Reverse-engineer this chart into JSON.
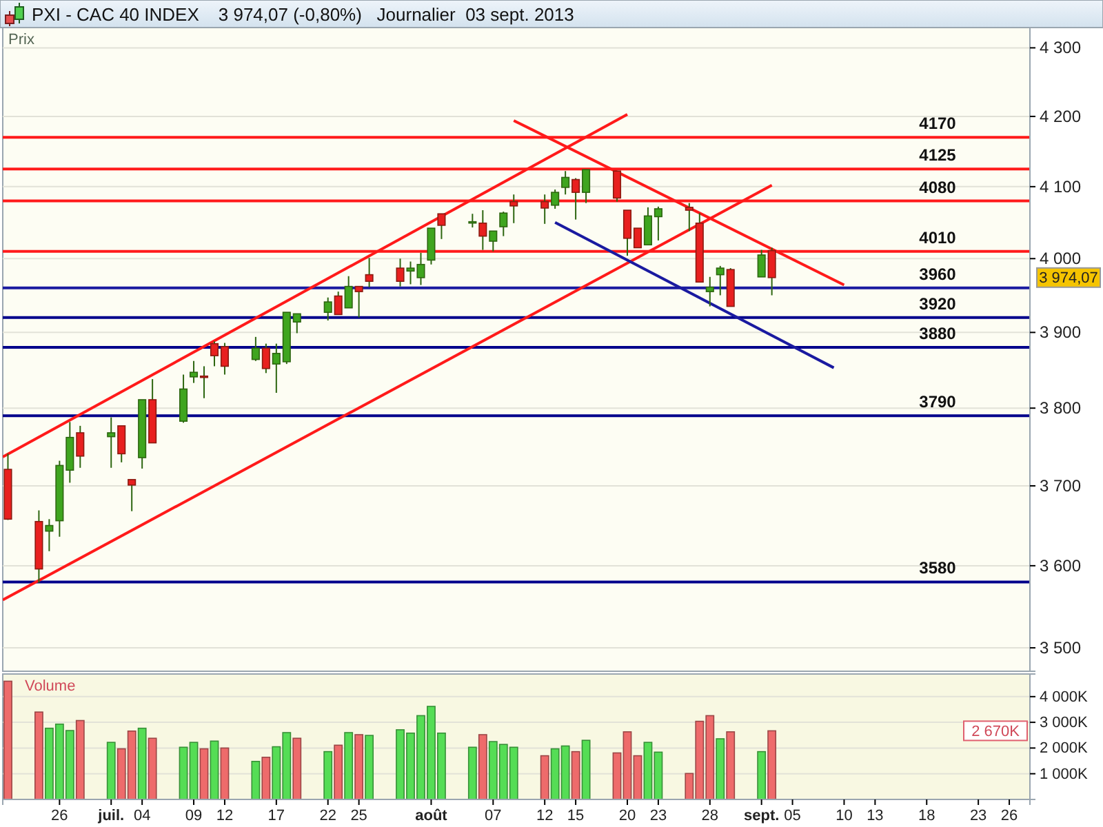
{
  "chart_data": [
    {
      "type": "candlestick",
      "title": "PXI - CAC 40 INDEX",
      "subtitle": "3 974,07 (-0,80%)   Journalier  03 sept. 2013",
      "ylabel": "Prix",
      "x": [
        "2013-06-21",
        "2013-06-24",
        "2013-06-25",
        "2013-06-26",
        "2013-06-27",
        "2013-06-28",
        "2013-07-01",
        "2013-07-02",
        "2013-07-03",
        "2013-07-04",
        "2013-07-05",
        "2013-07-08",
        "2013-07-09",
        "2013-07-10",
        "2013-07-11",
        "2013-07-12",
        "2013-07-15",
        "2013-07-16",
        "2013-07-17",
        "2013-07-18",
        "2013-07-19",
        "2013-07-22",
        "2013-07-23",
        "2013-07-24",
        "2013-07-25",
        "2013-07-26",
        "2013-07-29",
        "2013-07-30",
        "2013-07-31",
        "2013-08-01",
        "2013-08-02",
        "2013-08-05",
        "2013-08-06",
        "2013-08-07",
        "2013-08-08",
        "2013-08-09",
        "2013-08-12",
        "2013-08-13",
        "2013-08-14",
        "2013-08-15",
        "2013-08-16",
        "2013-08-19",
        "2013-08-20",
        "2013-08-21",
        "2013-08-22",
        "2013-08-23",
        "2013-08-26",
        "2013-08-27",
        "2013-08-28",
        "2013-08-29",
        "2013-08-30",
        "2013-09-02",
        "2013-09-03"
      ],
      "ohlc": [
        [
          3721,
          3741,
          3657,
          3658
        ],
        [
          3655,
          3669,
          3579,
          3596
        ],
        [
          3643,
          3658,
          3618,
          3650
        ],
        [
          3656,
          3732,
          3636,
          3726
        ],
        [
          3720,
          3782,
          3704,
          3762
        ],
        [
          3768,
          3777,
          3723,
          3738
        ],
        [
          3763,
          3788,
          3723,
          3768
        ],
        [
          3777,
          3777,
          3730,
          3741
        ],
        [
          3708,
          3708,
          3668,
          3701
        ],
        [
          3736,
          3811,
          3722,
          3811
        ],
        [
          3811,
          3838,
          3755,
          3755
        ],
        [
          3783,
          3844,
          3781,
          3825
        ],
        [
          3841,
          3862,
          3833,
          3847
        ],
        [
          3842,
          3855,
          3813,
          3841
        ],
        [
          3885,
          3888,
          3855,
          3869
        ],
        [
          3881,
          3886,
          3844,
          3855
        ],
        [
          3864,
          3894,
          3862,
          3879
        ],
        [
          3879,
          3885,
          3846,
          3852
        ],
        [
          3858,
          3885,
          3820,
          3872
        ],
        [
          3861,
          3927,
          3858,
          3927
        ],
        [
          3914,
          3925,
          3899,
          3925
        ],
        [
          3927,
          3947,
          3916,
          3941
        ],
        [
          3949,
          3955,
          3924,
          3924
        ],
        [
          3933,
          3976,
          3933,
          3962
        ],
        [
          3962,
          3962,
          3920,
          3955
        ],
        [
          3978,
          4001,
          3961,
          3969
        ],
        [
          3987,
          4000,
          3962,
          3969
        ],
        [
          3983,
          3996,
          3965,
          3987
        ],
        [
          3974,
          4008,
          3964,
          3992
        ],
        [
          3998,
          4042,
          3992,
          4042
        ],
        [
          4062,
          4062,
          4027,
          4046
        ],
        [
          4050,
          4062,
          4043,
          4051
        ],
        [
          4049,
          4067,
          4012,
          4031
        ],
        [
          4024,
          4038,
          4010,
          4038
        ],
        [
          4044,
          4065,
          4031,
          4063
        ],
        [
          4079,
          4089,
          4049,
          4073
        ],
        [
          4079,
          4089,
          4048,
          4070
        ],
        [
          4074,
          4096,
          4069,
          4092
        ],
        [
          4099,
          4122,
          4089,
          4113
        ],
        [
          4110,
          4112,
          4054,
          4092
        ],
        [
          4092,
          4124,
          4077,
          4124
        ],
        [
          4122,
          4122,
          4079,
          4084
        ],
        [
          4067,
          4067,
          4004,
          4028
        ],
        [
          4042,
          4042,
          4015,
          4015
        ],
        [
          4019,
          4071,
          4019,
          4059
        ],
        [
          4058,
          4072,
          4025,
          4069
        ],
        [
          4071,
          4077,
          4038,
          4067
        ],
        [
          4049,
          4063,
          3968,
          3968
        ],
        [
          3955,
          3975,
          3935,
          3961
        ],
        [
          3978,
          3990,
          3950,
          3987
        ],
        [
          3985,
          3987,
          3935,
          3935
        ],
        [
          3975,
          4012,
          3975,
          4005
        ],
        [
          4011,
          4015,
          3950,
          3974.07
        ]
      ],
      "series": [
        {
          "type": "line",
          "color": "#ff1a1a",
          "x": [
            "2013-06-20T12:00",
            "2013-08-20"
          ],
          "values": [
            3737,
            4203
          ]
        },
        {
          "type": "line",
          "color": "#ff1a1a",
          "x": [
            "2013-06-20T12:00",
            "2013-09-03"
          ],
          "values": [
            3558,
            4102
          ]
        },
        {
          "type": "line",
          "color": "#ff1a1a",
          "x": [
            "2013-08-09",
            "2013-09-10"
          ],
          "values": [
            4194,
            3964
          ]
        },
        {
          "type": "line",
          "color": "#1a1aa0",
          "x": [
            "2013-08-13",
            "2013-09-09"
          ],
          "values": [
            4050,
            3853
          ]
        }
      ],
      "ref_lines": [
        {
          "axis": "y",
          "value": 4170,
          "label": "4170",
          "color": "#ff1a1a"
        },
        {
          "axis": "y",
          "value": 4125,
          "label": "4125",
          "color": "#ff1a1a"
        },
        {
          "axis": "y",
          "value": 4080,
          "label": "4080",
          "color": "#ff1a1a"
        },
        {
          "axis": "y",
          "value": 4010,
          "label": "4010",
          "color": "#ff1a1a"
        },
        {
          "axis": "y",
          "value": 3960,
          "label": "3960",
          "color": "#1a1aa0"
        },
        {
          "axis": "y",
          "value": 3920,
          "label": "3920",
          "color": "#00008b"
        },
        {
          "axis": "y",
          "value": 3880,
          "label": "3880",
          "color": "#00008b"
        },
        {
          "axis": "y",
          "value": 3790,
          "label": "3790",
          "color": "#00008b"
        },
        {
          "axis": "y",
          "value": 3580,
          "label": "3580",
          "color": "#00008b"
        }
      ],
      "annotations": [
        "3 974,07"
      ],
      "xlim": [
        "2013-06-20T12:00",
        "2013-09-28"
      ],
      "ylim": [
        3472,
        4330
      ],
      "log": true,
      "yticks": [
        {
          "value": 3500,
          "label": "3 500"
        },
        {
          "value": 3600,
          "label": "3 600"
        },
        {
          "value": 3700,
          "label": "3 700"
        },
        {
          "value": 3800,
          "label": "3 800"
        },
        {
          "value": 3900,
          "label": "3 900"
        },
        {
          "value": 4000,
          "label": "4 000"
        },
        {
          "value": 4100,
          "label": "4 100"
        },
        {
          "value": 4200,
          "label": "4 200"
        },
        {
          "value": 4300,
          "label": "4 300"
        }
      ],
      "grid": "y",
      "tick_labels": "y"
    },
    {
      "type": "bar",
      "ylabel": "Volume",
      "x": [
        "2013-06-21",
        "2013-06-24",
        "2013-06-25",
        "2013-06-26",
        "2013-06-27",
        "2013-06-28",
        "2013-07-01",
        "2013-07-02",
        "2013-07-03",
        "2013-07-04",
        "2013-07-05",
        "2013-07-08",
        "2013-07-09",
        "2013-07-10",
        "2013-07-11",
        "2013-07-12",
        "2013-07-15",
        "2013-07-16",
        "2013-07-17",
        "2013-07-18",
        "2013-07-19",
        "2013-07-22",
        "2013-07-23",
        "2013-07-24",
        "2013-07-25",
        "2013-07-26",
        "2013-07-29",
        "2013-07-30",
        "2013-07-31",
        "2013-08-01",
        "2013-08-02",
        "2013-08-05",
        "2013-08-06",
        "2013-08-07",
        "2013-08-08",
        "2013-08-09",
        "2013-08-12",
        "2013-08-13",
        "2013-08-14",
        "2013-08-15",
        "2013-08-16",
        "2013-08-19",
        "2013-08-20",
        "2013-08-21",
        "2013-08-22",
        "2013-08-23",
        "2013-08-26",
        "2013-08-27",
        "2013-08-28",
        "2013-08-29",
        "2013-08-30",
        "2013-09-02",
        "2013-09-03"
      ],
      "values": [
        4600,
        3400,
        2770,
        2930,
        2680,
        3070,
        2220,
        1970,
        2660,
        2770,
        2380,
        2030,
        2220,
        1970,
        2270,
        2000,
        1480,
        1640,
        2050,
        2600,
        2380,
        1860,
        2110,
        2600,
        2520,
        2490,
        2710,
        2580,
        3260,
        3620,
        2580,
        2030,
        2520,
        2250,
        2140,
        2030,
        1700,
        1970,
        2080,
        1860,
        2300,
        1810,
        2630,
        1700,
        2220,
        1840,
        1010,
        3040,
        3260,
        2360,
        2630,
        1860,
        2670
      ],
      "colors": [
        "#ee6b6b",
        "#ee6b6b",
        "#55dd55",
        "#55dd55",
        "#55dd55",
        "#ee6b6b",
        "#55dd55",
        "#ee6b6b",
        "#ee6b6b",
        "#55dd55",
        "#ee6b6b",
        "#55dd55",
        "#55dd55",
        "#ee6b6b",
        "#55dd55",
        "#ee6b6b",
        "#55dd55",
        "#ee6b6b",
        "#55dd55",
        "#55dd55",
        "#ee6b6b",
        "#55dd55",
        "#ee6b6b",
        "#55dd55",
        "#ee6b6b",
        "#55dd55",
        "#55dd55",
        "#55dd55",
        "#55dd55",
        "#55dd55",
        "#55dd55",
        "#55dd55",
        "#ee6b6b",
        "#55dd55",
        "#55dd55",
        "#55dd55",
        "#ee6b6b",
        "#55dd55",
        "#55dd55",
        "#ee6b6b",
        "#55dd55",
        "#ee6b6b",
        "#ee6b6b",
        "#ee6b6b",
        "#55dd55",
        "#55dd55",
        "#ee6b6b",
        "#ee6b6b",
        "#ee6b6b",
        "#55dd55",
        "#ee6b6b",
        "#55dd55",
        "#ee6b6b"
      ],
      "annotations": [
        "2 670K"
      ],
      "xlim": [
        "2013-06-20T12:00",
        "2013-09-28"
      ],
      "ylim": [
        0,
        4880
      ],
      "xticks": [
        {
          "value": "2013-06-26",
          "label": "26"
        },
        {
          "value": "2013-07-01",
          "label": "juil."
        },
        {
          "value": "2013-07-04",
          "label": "04"
        },
        {
          "value": "2013-07-09",
          "label": "09"
        },
        {
          "value": "2013-07-12",
          "label": "12"
        },
        {
          "value": "2013-07-17",
          "label": "17"
        },
        {
          "value": "2013-07-22",
          "label": "22"
        },
        {
          "value": "2013-07-25",
          "label": "25"
        },
        {
          "value": "2013-08-01",
          "label": "août"
        },
        {
          "value": "2013-08-07",
          "label": "07"
        },
        {
          "value": "2013-08-12",
          "label": "12"
        },
        {
          "value": "2013-08-15",
          "label": "15"
        },
        {
          "value": "2013-08-20",
          "label": "20"
        },
        {
          "value": "2013-08-23",
          "label": "23"
        },
        {
          "value": "2013-08-28",
          "label": "28"
        },
        {
          "value": "2013-09-02",
          "label": "sept."
        },
        {
          "value": "2013-09-05",
          "label": "05"
        },
        {
          "value": "2013-09-10",
          "label": "10"
        },
        {
          "value": "2013-09-13",
          "label": "13"
        },
        {
          "value": "2013-09-18",
          "label": "18"
        },
        {
          "value": "2013-09-23",
          "label": "23"
        },
        {
          "value": "2013-09-26",
          "label": "26"
        }
      ],
      "yticks": [
        {
          "value": 1000,
          "label": "1 000K"
        },
        {
          "value": 2000,
          "label": "2 000K"
        },
        {
          "value": 3000,
          "label": "3 000K"
        },
        {
          "value": 4000,
          "label": "4 000K"
        }
      ],
      "grid": "y"
    }
  ]
}
